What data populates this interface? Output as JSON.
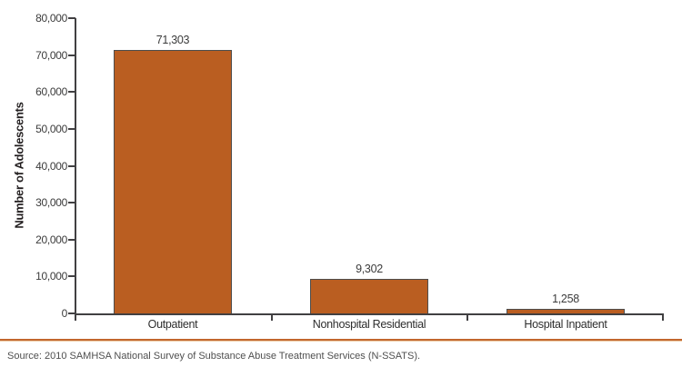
{
  "chart_data": {
    "type": "bar",
    "title": "",
    "categories": [
      "Outpatient",
      "Nonhospital Residential",
      "Hospital Inpatient"
    ],
    "values": [
      71303,
      9302,
      1258
    ],
    "value_labels": [
      "71,303",
      "9,302",
      "1,258"
    ],
    "xlabel": "",
    "ylabel": "Number of Adolescents",
    "ylim": [
      0,
      80000
    ],
    "ytick_values": [
      0,
      10000,
      20000,
      30000,
      40000,
      50000,
      60000,
      70000,
      80000
    ],
    "ytick_labels": [
      "0",
      "10,000",
      "20,000",
      "30,000",
      "40,000",
      "50,000",
      "60,000",
      "70,000",
      "80,000"
    ],
    "grid": false,
    "legend": "none",
    "bar_color": "#BA5E21",
    "bar_border_color": "#4D4D4D",
    "axis_color": "#414042"
  },
  "footer": {
    "divider_color": "#C2672E",
    "source_text": "Source: 2010 SAMHSA National Survey of Substance Abuse Treatment Services (N-SSATS)."
  }
}
